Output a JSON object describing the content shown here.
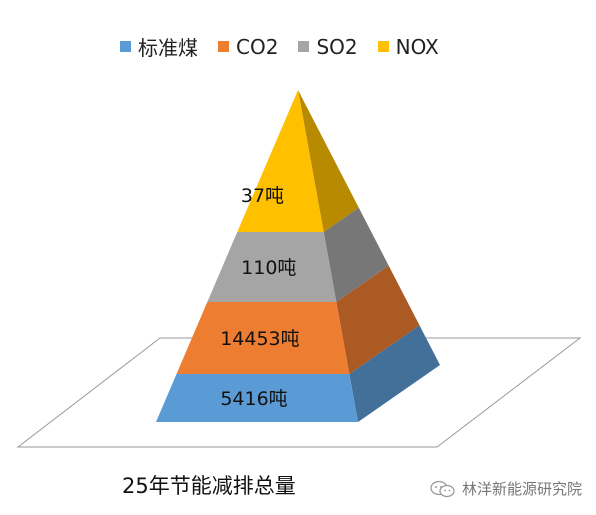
{
  "chart_data": {
    "type": "pyramid",
    "title": "",
    "segments": [
      {
        "name": "标准煤",
        "label": "5416吨",
        "color": "#5B9BD5"
      },
      {
        "name": "CO2",
        "label": "14453吨",
        "color": "#ED7D31"
      },
      {
        "name": "SO2",
        "label": "110吨",
        "color": "#A5A5A5"
      },
      {
        "name": "NOX",
        "label": "37吨",
        "color": "#FFC000"
      }
    ],
    "legend_position": "top"
  },
  "caption": "25年节能减排总量",
  "watermark": "林洋新能源研究院",
  "watermark_icon": "wechat-icon"
}
